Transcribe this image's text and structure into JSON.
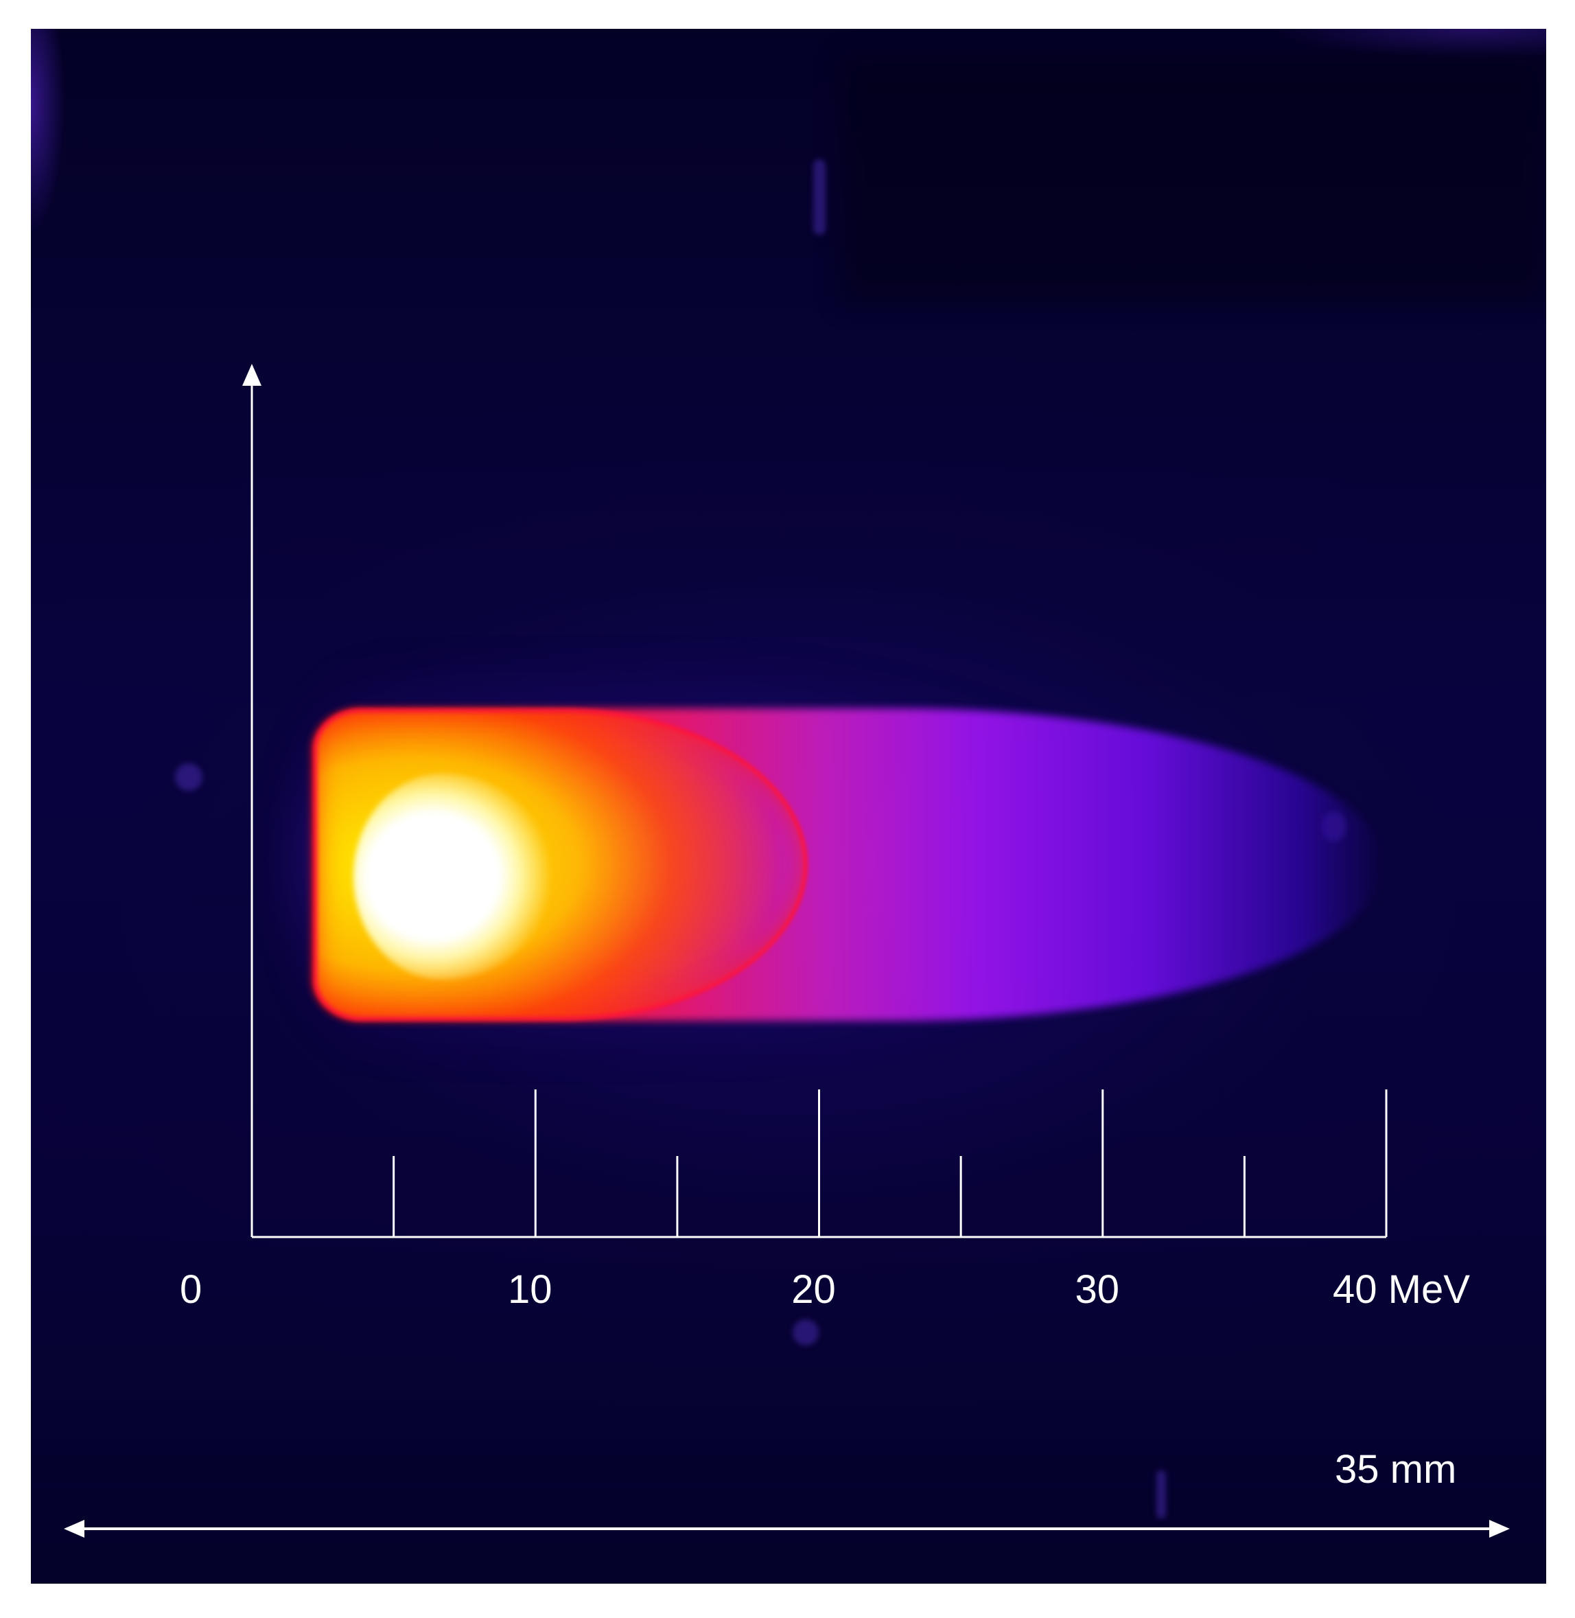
{
  "image": {
    "description_free": true,
    "colormap_colors": [
      "#040127",
      "#6a0de0",
      "#c51ec0",
      "#ff1010",
      "#ffd200",
      "#ffffff"
    ]
  },
  "energy_axis": {
    "tick_labels": [
      "0",
      "10",
      "20",
      "30",
      "40 MeV"
    ],
    "major_ticks": [
      0,
      10,
      20,
      30,
      40
    ],
    "minor_ticks": [
      5,
      15,
      25,
      35
    ]
  },
  "scale_bar": {
    "label": "35 mm"
  }
}
